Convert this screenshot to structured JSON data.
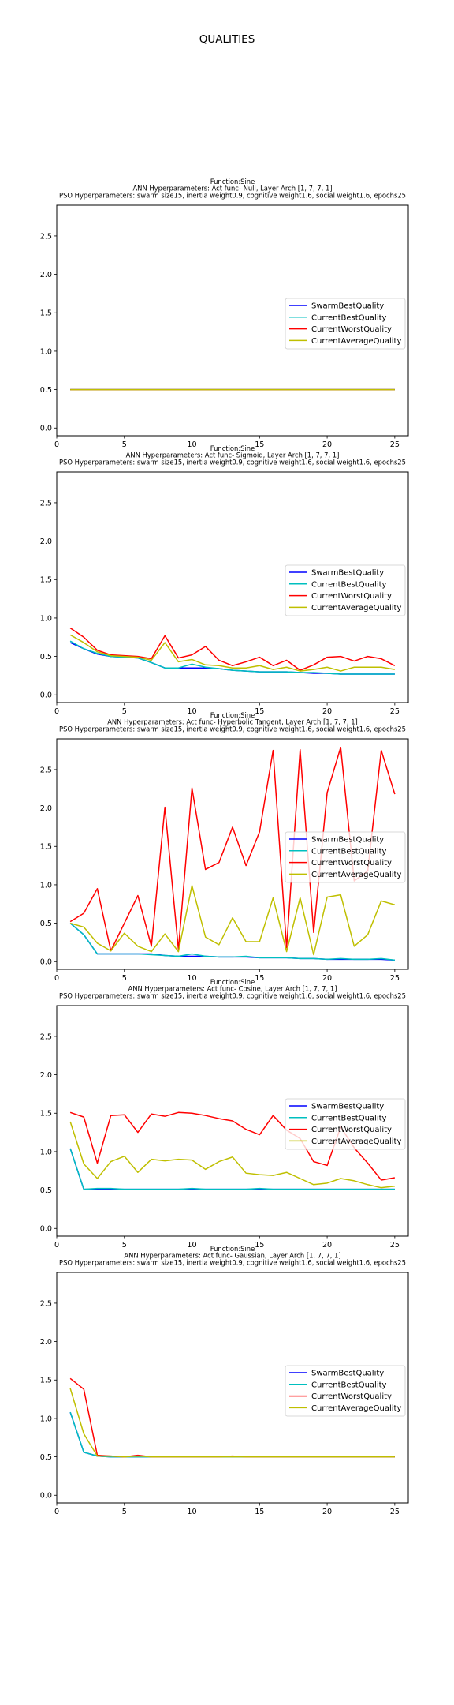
{
  "suptitle": "QUALITIES",
  "colors": {
    "SwarmBestQuality": "#0000ff",
    "CurrentBestQuality": "#00bfbf",
    "CurrentWorstQuality": "#ff0000",
    "CurrentAverageQuality": "#bfbf00"
  },
  "chart_data": [
    {
      "type": "line",
      "title_lines": [
        "Function:Sine",
        "ANN Hyperparameters: Act func- Null, Layer Arch [1, 7, 7, 1]",
        "PSO Hyperparameters: swarm size15, inertia weight0.9, cognitive weight1.6, social weight1.6, epochs25"
      ],
      "xlim": [
        0,
        26
      ],
      "ylim": [
        -0.1,
        2.9
      ],
      "xticks": [
        0,
        5,
        10,
        15,
        20,
        25
      ],
      "yticks": [
        "0.0",
        "0.5",
        "1.0",
        "1.5",
        "2.0",
        "2.5"
      ],
      "legend_position": "center-right",
      "x": [
        1,
        2,
        3,
        4,
        5,
        6,
        7,
        8,
        9,
        10,
        11,
        12,
        13,
        14,
        15,
        16,
        17,
        18,
        19,
        20,
        21,
        22,
        23,
        24,
        25
      ],
      "series": [
        {
          "name": "SwarmBestQuality",
          "values": [
            0.5,
            0.5,
            0.5,
            0.5,
            0.5,
            0.5,
            0.5,
            0.5,
            0.5,
            0.5,
            0.5,
            0.5,
            0.5,
            0.5,
            0.5,
            0.5,
            0.5,
            0.5,
            0.5,
            0.5,
            0.5,
            0.5,
            0.5,
            0.5,
            0.5
          ]
        },
        {
          "name": "CurrentBestQuality",
          "values": [
            0.5,
            0.5,
            0.5,
            0.5,
            0.5,
            0.5,
            0.5,
            0.5,
            0.5,
            0.5,
            0.5,
            0.5,
            0.5,
            0.5,
            0.5,
            0.5,
            0.5,
            0.5,
            0.5,
            0.5,
            0.5,
            0.5,
            0.5,
            0.5,
            0.5
          ]
        },
        {
          "name": "CurrentWorstQuality",
          "values": [
            0.5,
            0.5,
            0.5,
            0.5,
            0.5,
            0.5,
            0.5,
            0.5,
            0.5,
            0.5,
            0.5,
            0.5,
            0.5,
            0.5,
            0.5,
            0.5,
            0.5,
            0.5,
            0.5,
            0.5,
            0.5,
            0.5,
            0.5,
            0.5,
            0.5
          ]
        },
        {
          "name": "CurrentAverageQuality",
          "values": [
            0.5,
            0.5,
            0.5,
            0.5,
            0.5,
            0.5,
            0.5,
            0.5,
            0.5,
            0.5,
            0.5,
            0.5,
            0.5,
            0.5,
            0.5,
            0.5,
            0.5,
            0.5,
            0.5,
            0.5,
            0.5,
            0.5,
            0.5,
            0.5,
            0.5
          ]
        }
      ]
    },
    {
      "type": "line",
      "title_lines": [
        "Function:Sine",
        "ANN Hyperparameters: Act func- Sigmoid, Layer Arch [1, 7, 7, 1]",
        "PSO Hyperparameters: swarm size15, inertia weight0.9, cognitive weight1.6, social weight1.6, epochs25"
      ],
      "xlim": [
        0,
        26
      ],
      "ylim": [
        -0.1,
        2.9
      ],
      "xticks": [
        0,
        5,
        10,
        15,
        20,
        25
      ],
      "yticks": [
        "0.0",
        "0.5",
        "1.0",
        "1.5",
        "2.0",
        "2.5"
      ],
      "legend_position": "center-right",
      "x": [
        1,
        2,
        3,
        4,
        5,
        6,
        7,
        8,
        9,
        10,
        11,
        12,
        13,
        14,
        15,
        16,
        17,
        18,
        19,
        20,
        21,
        22,
        23,
        24,
        25
      ],
      "series": [
        {
          "name": "SwarmBestQuality",
          "values": [
            0.68,
            0.6,
            0.53,
            0.5,
            0.49,
            0.48,
            0.42,
            0.35,
            0.35,
            0.35,
            0.35,
            0.34,
            0.32,
            0.31,
            0.3,
            0.3,
            0.3,
            0.29,
            0.28,
            0.28,
            0.27,
            0.27,
            0.27,
            0.27,
            0.27
          ]
        },
        {
          "name": "CurrentBestQuality",
          "values": [
            0.7,
            0.6,
            0.54,
            0.5,
            0.49,
            0.48,
            0.42,
            0.35,
            0.35,
            0.4,
            0.36,
            0.34,
            0.32,
            0.31,
            0.3,
            0.3,
            0.3,
            0.29,
            0.29,
            0.28,
            0.27,
            0.27,
            0.27,
            0.27,
            0.27
          ]
        },
        {
          "name": "CurrentWorstQuality",
          "values": [
            0.87,
            0.75,
            0.58,
            0.52,
            0.51,
            0.5,
            0.47,
            0.77,
            0.48,
            0.52,
            0.63,
            0.45,
            0.38,
            0.43,
            0.49,
            0.38,
            0.45,
            0.32,
            0.39,
            0.49,
            0.5,
            0.44,
            0.5,
            0.47,
            0.38
          ]
        },
        {
          "name": "CurrentAverageQuality",
          "values": [
            0.78,
            0.68,
            0.56,
            0.51,
            0.5,
            0.49,
            0.45,
            0.68,
            0.43,
            0.46,
            0.39,
            0.38,
            0.35,
            0.35,
            0.38,
            0.33,
            0.36,
            0.31,
            0.33,
            0.36,
            0.31,
            0.36,
            0.36,
            0.36,
            0.33
          ]
        }
      ]
    },
    {
      "type": "line",
      "title_lines": [
        "Function:Sine",
        "ANN Hyperparameters: Act func- Hyperbolic Tangent, Layer Arch [1, 7, 7, 1]",
        "PSO Hyperparameters: swarm size15, inertia weight0.9, cognitive weight1.6, social weight1.6, epochs25"
      ],
      "xlim": [
        0,
        26
      ],
      "ylim": [
        -0.1,
        2.9
      ],
      "xticks": [
        0,
        5,
        10,
        15,
        20,
        25
      ],
      "yticks": [
        "0.0",
        "0.5",
        "1.0",
        "1.5",
        "2.0",
        "2.5"
      ],
      "legend_position": "center-right",
      "x": [
        1,
        2,
        3,
        4,
        5,
        6,
        7,
        8,
        9,
        10,
        11,
        12,
        13,
        14,
        15,
        16,
        17,
        18,
        19,
        20,
        21,
        22,
        23,
        24,
        25
      ],
      "series": [
        {
          "name": "SwarmBestQuality",
          "values": [
            0.5,
            0.35,
            0.1,
            0.1,
            0.1,
            0.1,
            0.1,
            0.08,
            0.07,
            0.07,
            0.07,
            0.06,
            0.06,
            0.06,
            0.05,
            0.05,
            0.05,
            0.04,
            0.04,
            0.03,
            0.03,
            0.03,
            0.03,
            0.03,
            0.02
          ]
        },
        {
          "name": "CurrentBestQuality",
          "values": [
            0.5,
            0.35,
            0.1,
            0.1,
            0.1,
            0.1,
            0.09,
            0.08,
            0.07,
            0.1,
            0.07,
            0.06,
            0.06,
            0.07,
            0.05,
            0.05,
            0.05,
            0.04,
            0.04,
            0.03,
            0.04,
            0.03,
            0.03,
            0.04,
            0.02
          ]
        },
        {
          "name": "CurrentWorstQuality",
          "values": [
            0.52,
            0.63,
            0.95,
            0.14,
            0.5,
            0.86,
            0.2,
            2.01,
            0.16,
            2.26,
            1.2,
            1.29,
            1.75,
            1.25,
            1.69,
            2.75,
            0.18,
            2.76,
            0.38,
            2.2,
            2.79,
            1.05,
            1.18,
            2.75,
            2.18
          ]
        },
        {
          "name": "CurrentAverageQuality",
          "values": [
            0.5,
            0.45,
            0.24,
            0.14,
            0.37,
            0.2,
            0.13,
            0.36,
            0.13,
            0.99,
            0.32,
            0.22,
            0.57,
            0.26,
            0.26,
            0.83,
            0.13,
            0.83,
            0.09,
            0.84,
            0.87,
            0.2,
            0.35,
            0.79,
            0.74
          ]
        }
      ]
    },
    {
      "type": "line",
      "title_lines": [
        "Function:Sine",
        "ANN Hyperparameters: Act func- Cosine, Layer Arch [1, 7, 7, 1]",
        "PSO Hyperparameters: swarm size15, inertia weight0.9, cognitive weight1.6, social weight1.6, epochs25"
      ],
      "xlim": [
        0,
        26
      ],
      "ylim": [
        -0.1,
        2.9
      ],
      "xticks": [
        0,
        5,
        10,
        15,
        20,
        25
      ],
      "yticks": [
        "0.0",
        "0.5",
        "1.0",
        "1.5",
        "2.0",
        "2.5"
      ],
      "legend_position": "center-right",
      "x": [
        1,
        2,
        3,
        4,
        5,
        6,
        7,
        8,
        9,
        10,
        11,
        12,
        13,
        14,
        15,
        16,
        17,
        18,
        19,
        20,
        21,
        22,
        23,
        24,
        25
      ],
      "series": [
        {
          "name": "SwarmBestQuality",
          "values": [
            1.04,
            0.51,
            0.51,
            0.51,
            0.51,
            0.51,
            0.51,
            0.51,
            0.51,
            0.51,
            0.51,
            0.51,
            0.51,
            0.51,
            0.51,
            0.51,
            0.51,
            0.51,
            0.51,
            0.51,
            0.51,
            0.51,
            0.51,
            0.51,
            0.51
          ]
        },
        {
          "name": "CurrentBestQuality",
          "values": [
            1.04,
            0.51,
            0.52,
            0.52,
            0.51,
            0.51,
            0.51,
            0.51,
            0.51,
            0.52,
            0.51,
            0.51,
            0.51,
            0.51,
            0.52,
            0.51,
            0.51,
            0.51,
            0.51,
            0.51,
            0.51,
            0.51,
            0.51,
            0.51,
            0.51
          ]
        },
        {
          "name": "CurrentWorstQuality",
          "values": [
            1.51,
            1.45,
            0.85,
            1.47,
            1.48,
            1.25,
            1.49,
            1.46,
            1.51,
            1.5,
            1.47,
            1.43,
            1.4,
            1.29,
            1.22,
            1.47,
            1.28,
            1.17,
            0.87,
            0.82,
            1.32,
            1.05,
            0.85,
            0.63,
            0.66
          ]
        },
        {
          "name": "CurrentAverageQuality",
          "values": [
            1.39,
            0.84,
            0.65,
            0.87,
            0.94,
            0.73,
            0.9,
            0.88,
            0.9,
            0.89,
            0.77,
            0.87,
            0.93,
            0.72,
            0.7,
            0.69,
            0.73,
            0.65,
            0.57,
            0.59,
            0.65,
            0.62,
            0.57,
            0.53,
            0.55
          ]
        }
      ]
    },
    {
      "type": "line",
      "title_lines": [
        "Function:Sine",
        "ANN Hyperparameters: Act func- Gaussian, Layer Arch [1, 7, 7, 1]",
        "PSO Hyperparameters: swarm size15, inertia weight0.9, cognitive weight1.6, social weight1.6, epochs25"
      ],
      "xlim": [
        0,
        26
      ],
      "ylim": [
        -0.1,
        2.9
      ],
      "xticks": [
        0,
        5,
        10,
        15,
        20,
        25
      ],
      "yticks": [
        "0.0",
        "0.5",
        "1.0",
        "1.5",
        "2.0",
        "2.5"
      ],
      "legend_position": "center-right",
      "x": [
        1,
        2,
        3,
        4,
        5,
        6,
        7,
        8,
        9,
        10,
        11,
        12,
        13,
        14,
        15,
        16,
        17,
        18,
        19,
        20,
        21,
        22,
        23,
        24,
        25
      ],
      "series": [
        {
          "name": "SwarmBestQuality",
          "values": [
            1.08,
            0.56,
            0.51,
            0.5,
            0.5,
            0.5,
            0.5,
            0.5,
            0.5,
            0.5,
            0.5,
            0.5,
            0.5,
            0.5,
            0.5,
            0.5,
            0.5,
            0.5,
            0.5,
            0.5,
            0.5,
            0.5,
            0.5,
            0.5,
            0.5
          ]
        },
        {
          "name": "CurrentBestQuality",
          "values": [
            1.08,
            0.56,
            0.51,
            0.5,
            0.5,
            0.5,
            0.5,
            0.5,
            0.5,
            0.5,
            0.5,
            0.5,
            0.5,
            0.5,
            0.5,
            0.5,
            0.5,
            0.5,
            0.5,
            0.5,
            0.5,
            0.5,
            0.5,
            0.5,
            0.5
          ]
        },
        {
          "name": "CurrentWorstQuality",
          "values": [
            1.52,
            1.38,
            0.52,
            0.51,
            0.5,
            0.52,
            0.5,
            0.5,
            0.5,
            0.5,
            0.5,
            0.5,
            0.51,
            0.5,
            0.5,
            0.5,
            0.5,
            0.5,
            0.5,
            0.5,
            0.5,
            0.5,
            0.5,
            0.5,
            0.5
          ]
        },
        {
          "name": "CurrentAverageQuality",
          "values": [
            1.39,
            0.8,
            0.51,
            0.51,
            0.5,
            0.51,
            0.5,
            0.5,
            0.5,
            0.5,
            0.5,
            0.5,
            0.5,
            0.5,
            0.5,
            0.5,
            0.5,
            0.5,
            0.5,
            0.5,
            0.5,
            0.5,
            0.5,
            0.5,
            0.5
          ]
        }
      ]
    }
  ]
}
